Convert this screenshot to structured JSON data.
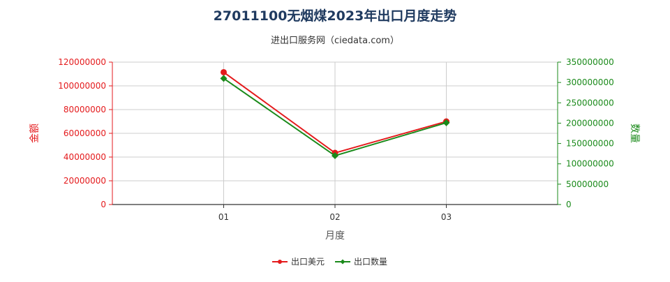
{
  "title": "27011100无烟煤2023年出口月度走势",
  "subtitle": "进出口服务网（ciedata.com）",
  "colors": {
    "left_axis": "#e41a1c",
    "right_axis": "#1a8a1a",
    "grid": "#cccccc",
    "title": "#1f3a5f"
  },
  "chart_data": {
    "type": "line",
    "title": "27011100无烟煤2023年出口月度走势",
    "subtitle": "进出口服务网（ciedata.com）",
    "xlabel": "月度",
    "ylabel_left": "金额",
    "ylabel_right": "数量",
    "categories": [
      "01",
      "02",
      "03"
    ],
    "ylim_left": [
      0,
      120000000
    ],
    "ylim_right": [
      0,
      350000000
    ],
    "yticks_left": [
      "0",
      "20000000",
      "40000000",
      "60000000",
      "80000000",
      "100000000",
      "120000000"
    ],
    "yticks_right": [
      "0",
      "50000000",
      "100000000",
      "150000000",
      "200000000",
      "250000000",
      "300000000",
      "350000000"
    ],
    "grid": true,
    "legend_position": "bottom-center",
    "series": [
      {
        "name": "出口美元",
        "axis": "left",
        "color": "#e41a1c",
        "marker": "circle",
        "values": [
          111500000,
          43500000,
          70000000
        ]
      },
      {
        "name": "出口数量",
        "axis": "right",
        "color": "#1a8a1a",
        "marker": "diamond",
        "values": [
          310000000,
          120000000,
          201000000
        ]
      }
    ]
  }
}
